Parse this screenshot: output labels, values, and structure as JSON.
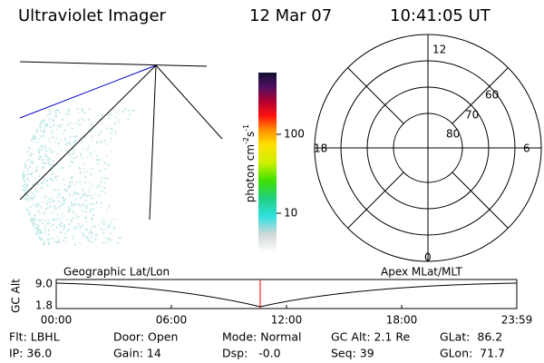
{
  "header": {
    "instrument": "Ultraviolet Imager",
    "date": "12 Mar 07",
    "time": "10:41:05 UT"
  },
  "colorbar": {
    "label": "photon cm",
    "exp1": "-2",
    "unit2": "s",
    "exp2": "-1",
    "ticks": [
      "100",
      "10"
    ]
  },
  "polar": {
    "mlt_labels": [
      "12",
      "18",
      "6",
      "0"
    ],
    "lat_labels": [
      "60",
      "70",
      "80"
    ]
  },
  "altitude_plot": {
    "y_label": "GC Alt",
    "y_ticks": [
      "9.0",
      "1.8"
    ],
    "left_title": "Geographic Lat/Lon",
    "right_title": "Apex MLat/MLT",
    "x_ticks": [
      "00:00",
      "06:00",
      "12:00",
      "18:00",
      "23:59"
    ]
  },
  "status": {
    "rows": [
      [
        "Flt: LBHL",
        "Door: Open",
        "Mode: Normal",
        "GC Alt: 2.1 Re",
        "GLat:  86.2"
      ],
      [
        "IP: 36.0",
        "Gain: 14",
        "Dsp:   -0.0",
        "Seq: 39",
        "GLon:  71.7"
      ]
    ]
  }
}
